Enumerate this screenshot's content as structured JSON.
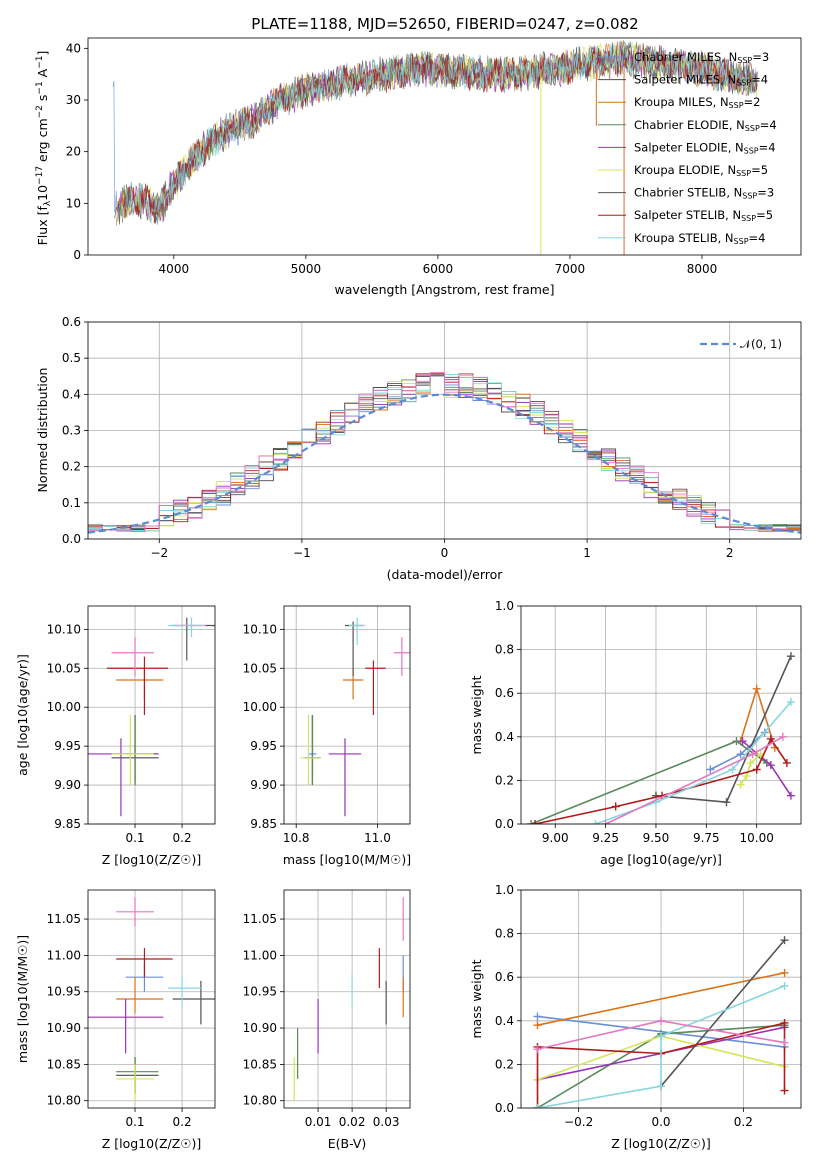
{
  "title": "PLATE=1188, MJD=52650, FIBERID=0247, z=0.082",
  "colors": {
    "Chabrier MILES": "#6b8fd6",
    "Salpeter MILES": "#4a4a4a",
    "Kroupa MILES": "#d9721a",
    "Chabrier ELODIE": "#5a8a5e",
    "Salpeter ELODIE": "#9a32b5",
    "Kroupa ELODIE": "#d4e55a",
    "Chabrier STELIB": "#555555",
    "Salpeter STELIB": "#b01c1c",
    "Kroupa STELIB": "#86d6e0",
    "pink": "#e377c2",
    "normal": "#5b8bd4"
  },
  "chart_data": [
    {
      "id": "spectrum",
      "type": "line",
      "title": "PLATE=1188, MJD=52650, FIBERID=0247, z=0.082",
      "xlabel": "wavelength [Angstrom, rest frame]",
      "ylabel": "Flux [f_λ 10^-17 erg cm^-2 s^-1 A^-1]",
      "xlim": [
        3350,
        8750
      ],
      "ylim": [
        0,
        42
      ],
      "xticks": [
        "4000",
        "5000",
        "6000",
        "7000",
        "8000"
      ],
      "yticks": [
        "0",
        "10",
        "20",
        "30",
        "40"
      ],
      "grid": false,
      "legend_position": "top-right",
      "continuum": {
        "x": [
          3550,
          3700,
          3900,
          4000,
          4100,
          4200,
          4300,
          4400,
          4500,
          4600,
          4800,
          5000,
          5200,
          5400,
          5600,
          5800,
          6000,
          6300,
          6600,
          6900,
          7100,
          7400,
          7700,
          8000,
          8300
        ],
        "y": [
          9,
          11,
          9,
          14,
          17,
          20,
          22,
          24,
          25,
          26,
          30,
          32,
          33,
          34,
          35,
          36,
          36,
          35,
          35,
          36,
          37,
          38,
          37,
          36,
          34
        ]
      },
      "series": [
        {
          "name": "Chabrier MILES, N_SSP=3",
          "legend": "Chabrier MILES, N",
          "n": "=3"
        },
        {
          "name": "Salpeter MILES, N_SSP=4",
          "legend": "Salpeter MILES, N",
          "n": "=4"
        },
        {
          "name": "Kroupa MILES, N_SSP=2",
          "legend": "Kroupa MILES, N",
          "n": "=2"
        },
        {
          "name": "Chabrier ELODIE, N_SSP=4",
          "legend": "Chabrier ELODIE, N",
          "n": "=4"
        },
        {
          "name": "Salpeter ELODIE, N_SSP=4",
          "legend": "Salpeter ELODIE, N",
          "n": "=4"
        },
        {
          "name": "Kroupa ELODIE, N_SSP=5",
          "legend": "Kroupa ELODIE, N",
          "n": "=5"
        },
        {
          "name": "Chabrier STELIB, N_SSP=3",
          "legend": "Chabrier STELIB, N",
          "n": "=3"
        },
        {
          "name": "Salpeter STELIB, N_SSP=5",
          "legend": "Salpeter STELIB, N",
          "n": "=5"
        },
        {
          "name": "Kroupa STELIB, N_SSP=4",
          "legend": "Kroupa STELIB, N",
          "n": "=4"
        }
      ],
      "legend_subscript": "SSP"
    },
    {
      "id": "residuals",
      "type": "line",
      "xlabel": "(data-model)/error",
      "ylabel": "Normed distribution",
      "xlim": [
        -2.5,
        2.5
      ],
      "ylim": [
        0,
        0.6
      ],
      "xticks": [
        "−2",
        "−1",
        "0",
        "1",
        "2"
      ],
      "yticks": [
        "0.0",
        "0.1",
        "0.2",
        "0.3",
        "0.4",
        "0.5",
        "0.6"
      ],
      "grid": true,
      "legend_position": "top-right",
      "legend": "𝒩(0, 1)",
      "bin_width": 0.1,
      "bins_start": -2.5,
      "histogram_peak": 0.43,
      "normal_curve": {
        "mean": 0,
        "std": 1
      }
    },
    {
      "id": "age_vs_Z",
      "type": "scatter",
      "xlabel": "Z [log10(Z/Z☉)]",
      "ylabel": "age [log10(age/yr)]",
      "xlim": [
        0.0,
        0.27
      ],
      "ylim": [
        9.85,
        10.13
      ],
      "xticks": [
        "0.1",
        "0.2"
      ],
      "yticks": [
        "9.85",
        "9.90",
        "9.95",
        "10.00",
        "10.05",
        "10.10"
      ],
      "points": [
        {
          "c": "Chabrier MILES",
          "x": 0.1,
          "y": 9.94,
          "ex": [
            0.05,
            0.15
          ],
          "ey": [
            9.905,
            9.99
          ]
        },
        {
          "c": "Salpeter MILES",
          "x": 0.1,
          "y": 9.935,
          "ex": [
            0.05,
            0.15
          ],
          "ey": [
            9.9,
            9.99
          ]
        },
        {
          "c": "Kroupa MILES",
          "x": 0.12,
          "y": 10.035,
          "ex": [
            0.06,
            0.16
          ],
          "ey": [
            10.01,
            10.05
          ]
        },
        {
          "c": "Chabrier ELODIE",
          "x": 0.1,
          "y": 9.94,
          "ex": [
            0.05,
            0.15
          ],
          "ey": [
            9.9,
            9.99
          ]
        },
        {
          "c": "Salpeter ELODIE",
          "x": 0.07,
          "y": 9.94,
          "ex": [
            0.0,
            0.15
          ],
          "ey": [
            9.86,
            9.96
          ]
        },
        {
          "c": "Kroupa ELODIE",
          "x": 0.09,
          "y": 9.94,
          "ex": [
            0.05,
            0.14
          ],
          "ey": [
            9.9,
            9.99
          ]
        },
        {
          "c": "Chabrier STELIB",
          "x": 0.21,
          "y": 10.105,
          "ex": [
            0.18,
            0.27
          ],
          "ey": [
            10.06,
            10.115
          ]
        },
        {
          "c": "Salpeter STELIB",
          "x": 0.12,
          "y": 10.05,
          "ex": [
            0.04,
            0.17
          ],
          "ey": [
            9.99,
            10.065
          ]
        },
        {
          "c": "Kroupa STELIB",
          "x": 0.22,
          "y": 10.105,
          "ex": [
            0.17,
            0.25
          ],
          "ey": [
            10.09,
            10.115
          ]
        },
        {
          "c": "pink",
          "x": 0.1,
          "y": 10.07,
          "ex": [
            0.05,
            0.14
          ],
          "ey": [
            10.04,
            10.09
          ]
        }
      ]
    },
    {
      "id": "age_vs_mass",
      "type": "scatter",
      "xlabel": "mass [log10(M/M☉)]",
      "ylabel": "",
      "xlim": [
        10.77,
        11.08
      ],
      "ylim": [
        9.85,
        10.13
      ],
      "xticks": [
        "10.8",
        "11.0"
      ],
      "yticks": [
        "9.85",
        "9.90",
        "9.95",
        "10.00",
        "10.05",
        "10.10"
      ],
      "points": [
        {
          "c": "Chabrier MILES",
          "x": 10.84,
          "y": 9.94,
          "ex": [
            10.83,
            10.85
          ],
          "ey": [
            9.905,
            9.99
          ]
        },
        {
          "c": "Salpeter MILES",
          "x": 10.84,
          "y": 9.935,
          "ex": [
            10.82,
            10.86
          ],
          "ey": [
            9.9,
            9.99
          ]
        },
        {
          "c": "Kroupa MILES",
          "x": 10.94,
          "y": 10.035,
          "ex": [
            10.915,
            10.965
          ],
          "ey": [
            10.01,
            10.05
          ]
        },
        {
          "c": "Chabrier ELODIE",
          "x": 10.84,
          "y": 9.935,
          "ex": [
            10.825,
            10.86
          ],
          "ey": [
            9.9,
            9.99
          ]
        },
        {
          "c": "Salpeter ELODIE",
          "x": 10.92,
          "y": 9.94,
          "ex": [
            10.88,
            10.96
          ],
          "ey": [
            9.86,
            9.96
          ]
        },
        {
          "c": "Kroupa ELODIE",
          "x": 10.83,
          "y": 9.935,
          "ex": [
            10.81,
            10.86
          ],
          "ey": [
            9.9,
            9.99
          ]
        },
        {
          "c": "Chabrier STELIB",
          "x": 10.94,
          "y": 10.105,
          "ex": [
            10.92,
            10.965
          ],
          "ey": [
            10.04,
            10.11
          ]
        },
        {
          "c": "Salpeter STELIB",
          "x": 10.99,
          "y": 10.05,
          "ex": [
            10.97,
            11.02
          ],
          "ey": [
            9.99,
            10.06
          ]
        },
        {
          "c": "Kroupa STELIB",
          "x": 10.95,
          "y": 10.105,
          "ex": [
            10.93,
            10.97
          ],
          "ey": [
            10.08,
            10.115
          ]
        },
        {
          "c": "pink",
          "x": 11.06,
          "y": 10.07,
          "ex": [
            11.04,
            11.08
          ],
          "ey": [
            10.04,
            10.09
          ]
        }
      ]
    },
    {
      "id": "mass_weight_vs_age",
      "type": "line",
      "xlabel": "age [log10(age/yr)]",
      "ylabel": "mass weight",
      "xlim": [
        8.83,
        10.22
      ],
      "ylim": [
        0,
        1
      ],
      "xticks": [
        "9.00",
        "9.25",
        "9.50",
        "9.75",
        "10.00"
      ],
      "yticks": [
        "0.0",
        "0.2",
        "0.4",
        "0.6",
        "0.8",
        "1.0"
      ],
      "grid": true,
      "series": [
        {
          "c": "Chabrier MILES",
          "x": [
            9.77,
            9.92,
            10.04
          ],
          "y": [
            0.25,
            0.32,
            0.42
          ]
        },
        {
          "c": "Kroupa MILES",
          "x": [
            9.92,
            10.0,
            10.09
          ],
          "y": [
            0.38,
            0.62,
            0.35
          ]
        },
        {
          "c": "Chabrier ELODIE",
          "x": [
            8.88,
            9.9,
            10.05
          ],
          "y": [
            0.0,
            0.38,
            0.28
          ]
        },
        {
          "c": "Salpeter ELODIE",
          "x": [
            9.93,
            10.07,
            10.17
          ],
          "y": [
            0.38,
            0.27,
            0.13
          ]
        },
        {
          "c": "Kroupa ELODIE",
          "x": [
            9.92,
            9.95,
            9.97,
            10.02
          ],
          "y": [
            0.18,
            0.22,
            0.28,
            0.32
          ]
        },
        {
          "c": "Chabrier STELIB",
          "x": [
            9.5,
            9.85,
            10.17
          ],
          "y": [
            0.13,
            0.1,
            0.77
          ]
        },
        {
          "c": "Salpeter STELIB",
          "x": [
            8.9,
            9.3,
            9.53,
            10.0,
            10.07,
            10.15
          ],
          "y": [
            0.0,
            0.08,
            0.13,
            0.25,
            0.39,
            0.28
          ]
        },
        {
          "c": "Kroupa STELIB",
          "x": [
            9.2,
            9.5,
            9.88,
            10.17
          ],
          "y": [
            0.0,
            0.1,
            0.25,
            0.56
          ]
        },
        {
          "c": "pink",
          "x": [
            9.25,
            9.98,
            10.13
          ],
          "y": [
            0.0,
            0.32,
            0.4
          ]
        }
      ]
    },
    {
      "id": "mass_vs_Z",
      "type": "scatter",
      "xlabel": "Z [log10(Z/Z☉)]",
      "ylabel": "mass [log10(M/M☉)]",
      "xlim": [
        0.0,
        0.27
      ],
      "ylim": [
        10.79,
        11.09
      ],
      "xticks": [
        "0.1",
        "0.2"
      ],
      "yticks": [
        "10.80",
        "10.85",
        "10.90",
        "10.95",
        "11.00",
        "11.05"
      ],
      "points": [
        {
          "c": "Chabrier MILES",
          "x": 0.12,
          "y": 10.97,
          "ex": [
            0.08,
            0.16
          ],
          "ey": [
            10.95,
            10.99
          ]
        },
        {
          "c": "Salpeter MILES",
          "x": 0.1,
          "y": 10.835,
          "ex": [
            0.06,
            0.15
          ],
          "ey": [
            10.81,
            10.86
          ]
        },
        {
          "c": "Kroupa MILES",
          "x": 0.1,
          "y": 10.94,
          "ex": [
            0.06,
            0.16
          ],
          "ey": [
            10.92,
            10.97
          ]
        },
        {
          "c": "Chabrier ELODIE",
          "x": 0.1,
          "y": 10.84,
          "ex": [
            0.06,
            0.15
          ],
          "ey": [
            10.81,
            10.86
          ]
        },
        {
          "c": "Salpeter ELODIE",
          "x": 0.08,
          "y": 10.915,
          "ex": [
            0.0,
            0.16
          ],
          "ey": [
            10.865,
            10.94
          ]
        },
        {
          "c": "Kroupa ELODIE",
          "x": 0.1,
          "y": 10.83,
          "ex": [
            0.06,
            0.14
          ],
          "ey": [
            10.8,
            10.85
          ]
        },
        {
          "c": "Chabrier STELIB",
          "x": 0.24,
          "y": 10.94,
          "ex": [
            0.18,
            0.27
          ],
          "ey": [
            10.905,
            10.965
          ]
        },
        {
          "c": "Salpeter STELIB",
          "x": 0.12,
          "y": 10.995,
          "ex": [
            0.06,
            0.18
          ],
          "ey": [
            10.97,
            11.01
          ]
        },
        {
          "c": "Kroupa STELIB",
          "x": 0.2,
          "y": 10.955,
          "ex": [
            0.17,
            0.24
          ],
          "ey": [
            10.93,
            10.97
          ]
        },
        {
          "c": "pink",
          "x": 0.1,
          "y": 11.06,
          "ex": [
            0.06,
            0.14
          ],
          "ey": [
            11.04,
            11.08
          ]
        }
      ]
    },
    {
      "id": "mass_vs_ebv",
      "type": "scatter",
      "xlabel": "E(B-V)",
      "ylabel": "",
      "xlim": [
        0.0,
        0.037
      ],
      "ylim": [
        10.79,
        11.09
      ],
      "xticks": [
        "0.01",
        "0.02",
        "0.03"
      ],
      "yticks": [
        "10.80",
        "10.85",
        "10.90",
        "10.95",
        "11.00",
        "11.05"
      ],
      "points": [
        {
          "c": "Chabrier MILES",
          "x": 0.035,
          "y": 10.97,
          "ey": [
            10.95,
            11.0
          ]
        },
        {
          "c": "Kroupa MILES",
          "x": 0.035,
          "y": 10.94,
          "ey": [
            10.915,
            10.97
          ]
        },
        {
          "c": "Chabrier ELODIE",
          "x": 0.004,
          "y": 10.86,
          "ey": [
            10.83,
            10.9
          ]
        },
        {
          "c": "Salpeter ELODIE",
          "x": 0.01,
          "y": 10.9,
          "ey": [
            10.865,
            10.94
          ]
        },
        {
          "c": "Kroupa ELODIE",
          "x": 0.003,
          "y": 10.83,
          "ey": [
            10.8,
            10.86
          ]
        },
        {
          "c": "Chabrier STELIB",
          "x": 0.03,
          "y": 10.94,
          "ey": [
            10.905,
            10.965
          ]
        },
        {
          "c": "Salpeter STELIB",
          "x": 0.028,
          "y": 10.98,
          "ey": [
            10.955,
            11.01
          ]
        },
        {
          "c": "Kroupa STELIB",
          "x": 0.02,
          "y": 10.95,
          "ey": [
            10.93,
            10.975
          ]
        },
        {
          "c": "pink",
          "x": 0.035,
          "y": 11.05,
          "ey": [
            11.02,
            11.08
          ]
        }
      ]
    },
    {
      "id": "mass_weight_vs_Z",
      "type": "line",
      "xlabel": "Z [log10(Z/Z☉)]",
      "ylabel": "mass weight",
      "xlim": [
        -0.34,
        0.34
      ],
      "ylim": [
        0,
        1
      ],
      "xticks": [
        "−0.2",
        "0.0",
        "0.2"
      ],
      "yticks": [
        "0.0",
        "0.2",
        "0.4",
        "0.6",
        "0.8",
        "1.0"
      ],
      "grid": true,
      "series": [
        {
          "c": "Chabrier MILES",
          "x": [
            -0.3,
            0.3
          ],
          "y": [
            0.42,
            0.28
          ]
        },
        {
          "c": "Kroupa MILES",
          "x": [
            -0.3,
            0.3
          ],
          "y": [
            0.38,
            0.62
          ]
        },
        {
          "c": "Chabrier ELODIE",
          "x": [
            -0.3,
            0.0,
            0.3
          ],
          "y": [
            0.0,
            0.34,
            0.38
          ]
        },
        {
          "c": "Salpeter ELODIE",
          "x": [
            -0.3,
            0.0,
            0.3
          ],
          "y": [
            0.13,
            0.25,
            0.37
          ]
        },
        {
          "c": "Kroupa ELODIE",
          "x": [
            -0.3,
            0.0,
            0.3
          ],
          "y": [
            0.13,
            0.33,
            0.19
          ]
        },
        {
          "c": "Chabrier STELIB",
          "x": [
            0.0,
            0.3
          ],
          "y": [
            0.1,
            0.77
          ]
        },
        {
          "c": "Salpeter STELIB",
          "x": [
            -0.3,
            -0.3,
            0.0,
            0.3,
            0.3
          ],
          "y": [
            0.0,
            0.28,
            0.25,
            0.39,
            0.08
          ]
        },
        {
          "c": "Kroupa STELIB",
          "x": [
            -0.3,
            0.0,
            0.0,
            0.3
          ],
          "y": [
            0.0,
            0.1,
            0.33,
            0.56
          ]
        },
        {
          "c": "pink",
          "x": [
            -0.3,
            0.0,
            0.3
          ],
          "y": [
            0.27,
            0.4,
            0.3
          ]
        }
      ]
    }
  ]
}
